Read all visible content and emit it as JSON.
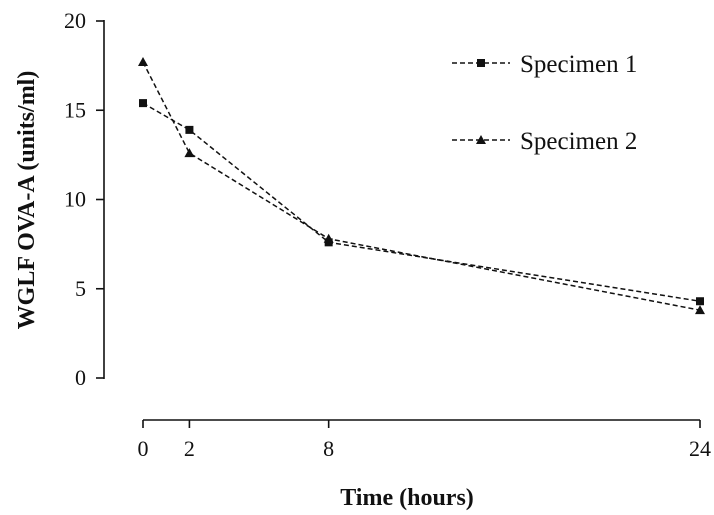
{
  "chart_data": {
    "type": "line",
    "title": "",
    "xlabel": "Time (hours)",
    "ylabel": "WGLF OVA-A (units/ml)",
    "x": [
      0,
      2,
      8,
      24
    ],
    "xticks": [
      "0",
      "2",
      "8",
      "24"
    ],
    "yticks": [
      "0",
      "5",
      "10",
      "15",
      "20"
    ],
    "xlim": [
      0,
      24
    ],
    "ylim": [
      0,
      20
    ],
    "grid": false,
    "legend_position": "top-right",
    "series": [
      {
        "name": "Specimen 1",
        "marker": "square",
        "values": [
          15.4,
          13.9,
          7.6,
          4.3
        ]
      },
      {
        "name": "Specimen 2",
        "marker": "triangle",
        "values": [
          17.7,
          12.6,
          7.8,
          3.8
        ]
      }
    ],
    "colors": {
      "line": "#111111",
      "background": "#ffffff"
    }
  }
}
